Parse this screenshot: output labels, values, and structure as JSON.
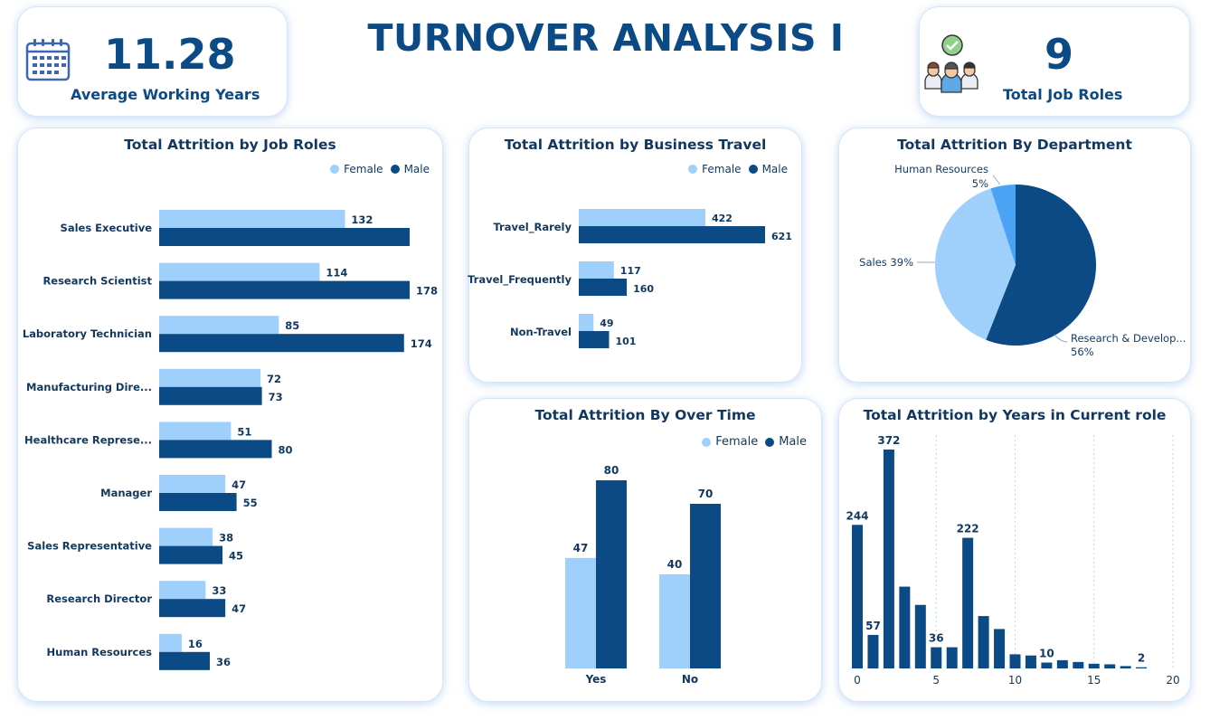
{
  "header": {
    "title": "TURNOVER ANALYSIS I"
  },
  "kpis": {
    "working_years": {
      "value": "11.28",
      "label": "Average Working Years",
      "icon": "calendar-icon"
    },
    "job_roles": {
      "value": "9",
      "label": "Total Job Roles",
      "icon": "team-check-icon"
    }
  },
  "colors": {
    "female": "#9fd0fb",
    "male": "#0b4a85",
    "hr_slice": "#4aa3f5"
  },
  "legend": {
    "female": "Female",
    "male": "Male"
  },
  "chart_data": [
    {
      "id": "job_roles",
      "type": "bar",
      "orientation": "horizontal",
      "title": "Total Attrition by Job Roles",
      "categories": [
        "Sales Executive",
        "Research Scientist",
        "Laboratory Technician",
        "Manufacturing Dire...",
        "Healthcare Represe...",
        "Manager",
        "Sales Representative",
        "Research Director",
        "Human Resources"
      ],
      "series": [
        {
          "name": "Female",
          "values": [
            132,
            114,
            85,
            72,
            51,
            47,
            38,
            33,
            16
          ]
        },
        {
          "name": "Male",
          "values": [
            178,
            178,
            174,
            73,
            80,
            55,
            45,
            47,
            36
          ]
        }
      ],
      "labels": [
        [
          "132",
          "114",
          "85",
          "72",
          "51",
          "47",
          "38",
          "33",
          "16"
        ],
        [
          "",
          "178",
          "174",
          "73",
          "80",
          "55",
          "45",
          "47",
          "36"
        ]
      ],
      "legend": "top-right"
    },
    {
      "id": "business_travel",
      "type": "bar",
      "orientation": "horizontal",
      "title": "Total Attrition by Business Travel",
      "categories": [
        "Travel_Rarely",
        "Travel_Frequently",
        "Non-Travel"
      ],
      "series": [
        {
          "name": "Female",
          "values": [
            422,
            117,
            49
          ]
        },
        {
          "name": "Male",
          "values": [
            621,
            160,
            101
          ]
        }
      ],
      "legend": "top-right"
    },
    {
      "id": "department",
      "type": "pie",
      "title": "Total Attrition By Department",
      "slices": [
        {
          "label": "Research & Develop...",
          "percent": 56,
          "pct_text": "56%"
        },
        {
          "label": "Sales",
          "percent": 39,
          "pct_text": "Sales 39%"
        },
        {
          "label": "Human Resources",
          "percent": 5,
          "pct_text": "5%"
        }
      ]
    },
    {
      "id": "over_time",
      "type": "bar",
      "orientation": "vertical",
      "title": "Total Attrition By Over Time",
      "categories": [
        "Yes",
        "No"
      ],
      "series": [
        {
          "name": "Female",
          "values": [
            47,
            40
          ]
        },
        {
          "name": "Male",
          "values": [
            80,
            70
          ]
        }
      ],
      "legend": "top-right"
    },
    {
      "id": "years_in_role",
      "type": "bar",
      "orientation": "vertical",
      "title": "Total Attrition by Years in Current role",
      "x": [
        0,
        1,
        2,
        3,
        4,
        5,
        6,
        7,
        8,
        9,
        10,
        11,
        12,
        13,
        14,
        15,
        16,
        17,
        18
      ],
      "values": [
        244,
        57,
        372,
        139,
        108,
        36,
        36,
        222,
        89,
        67,
        24,
        22,
        10,
        14,
        11,
        8,
        7,
        4,
        2
      ],
      "data_labels": [
        "244",
        "57",
        "372",
        "",
        "",
        "36",
        "",
        "222",
        "",
        "",
        "",
        "",
        "10",
        "",
        "",
        "",
        "",
        "",
        "2"
      ],
      "xticks": [
        0,
        5,
        10,
        15,
        20
      ],
      "xlim": [
        -0.5,
        20
      ],
      "gridlines": "vertical dotted"
    }
  ]
}
